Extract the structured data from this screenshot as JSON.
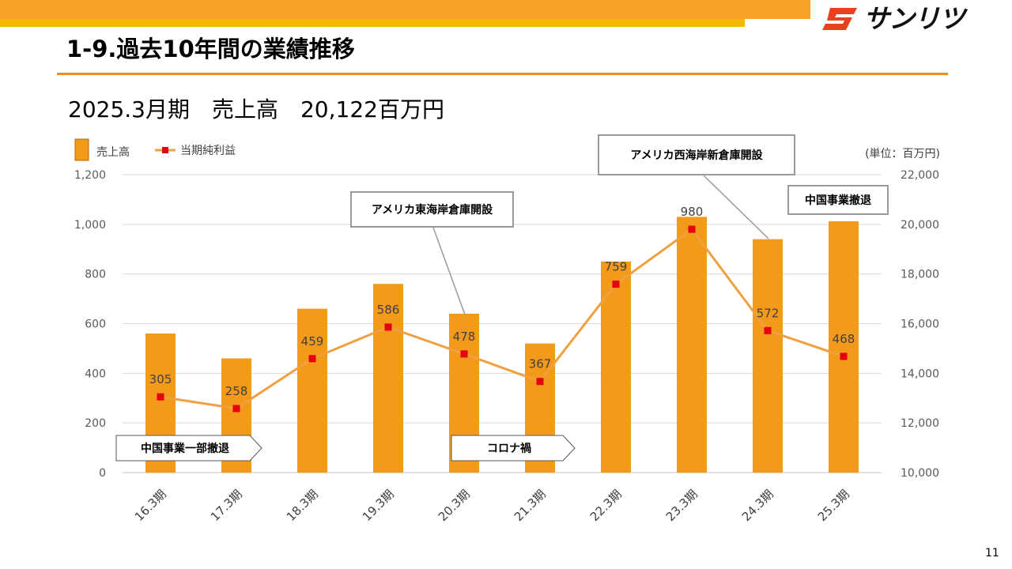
{
  "header": {
    "title": "1-9.過去10年間の業績推移",
    "subtitle": "2025.3月期　売上高　20,122百万円",
    "logo_text": "サンリツ",
    "page_number": "11"
  },
  "colors": {
    "bar": "#f39a1a",
    "line": "#f0a040",
    "marker": "#e60012",
    "accent_rule": "#f08c1e"
  },
  "annotations": {
    "east_coast": "アメリカ東海岸倉庫開設",
    "west_coast": "アメリカ西海岸新倉庫開設",
    "china_exit": "中国事業撤退",
    "china_partial_exit": "中国事業一部撤退",
    "covid": "コロナ禍"
  },
  "chart_data": {
    "type": "bar",
    "categories": [
      "16.3期",
      "17.3期",
      "18.3期",
      "19.3期",
      "20.3期",
      "21.3期",
      "22.3期",
      "23.3期",
      "24.3期",
      "25.3期"
    ],
    "unit_label": "(単位：百万円)",
    "legend": {
      "placement": "top-left",
      "bar_label": "売上高",
      "line_label": "当期純利益"
    },
    "grid": true,
    "series": [
      {
        "name": "売上高",
        "type": "bar",
        "axis": "right",
        "values": [
          15600,
          14600,
          16600,
          17600,
          16400,
          15200,
          18500,
          20300,
          19400,
          20122
        ]
      },
      {
        "name": "当期純利益",
        "type": "line",
        "axis": "left",
        "values": [
          305,
          258,
          459,
          586,
          478,
          367,
          759,
          980,
          572,
          468
        ]
      }
    ],
    "left_axis": {
      "min": 0,
      "max": 1200,
      "ticks": [
        "0",
        "200",
        "400",
        "600",
        "800",
        "1,000",
        "1,200"
      ]
    },
    "right_axis": {
      "min": 10000,
      "max": 22000,
      "ticks": [
        "10,000",
        "12,000",
        "14,000",
        "16,000",
        "18,000",
        "20,000",
        "22,000"
      ]
    }
  }
}
